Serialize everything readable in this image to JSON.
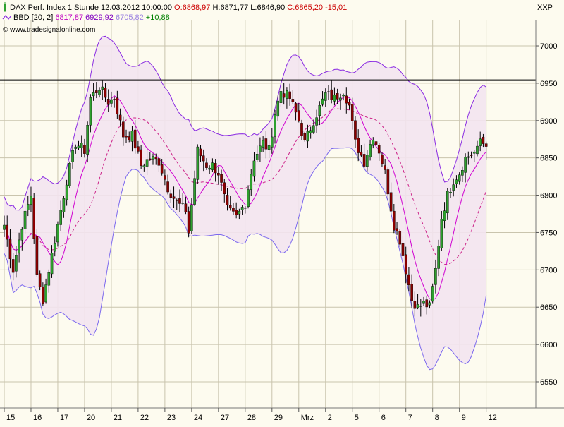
{
  "header": {
    "line1": [
      {
        "text": "DAX Perf. Index 1 Stunde",
        "color": "#000000"
      },
      {
        "text": "12.03.2012 10:00:00",
        "color": "#000000"
      },
      {
        "text": "O:6868,97",
        "color": "#cc0000"
      },
      {
        "text": "H:6871,77",
        "color": "#000000"
      },
      {
        "text": "L:6846,90",
        "color": "#000000"
      },
      {
        "text": "C:6865,20",
        "color": "#cc0000"
      },
      {
        "text": "-15,01",
        "color": "#cc0000"
      }
    ],
    "line2": [
      {
        "text": "BBD [20, 2]",
        "color": "#000000"
      },
      {
        "text": "6817,87",
        "color": "#c000c0"
      },
      {
        "text": "6929,92",
        "color": "#8000c0"
      },
      {
        "text": "6705,82",
        "color": "#9a80e0"
      },
      {
        "text": "+10,88",
        "color": "#008000"
      }
    ],
    "source": "© www.tradesignalonline.com",
    "symbol": "XXP"
  },
  "colors": {
    "background": "#fdfbef",
    "grid": "#c9c4ad",
    "up_candle": "#2ea02e",
    "down_candle": "#8b0000",
    "band_fill": "#f3e4f0",
    "upper_band": "#8a2be2",
    "lower_band": "#7b68ee",
    "middle_band": "#cc2288",
    "moving_average": "#d000d0",
    "resistance_line": "#000000"
  },
  "chart_data": {
    "type": "candlestick",
    "y_ticks": [
      6550,
      6600,
      6650,
      6700,
      6750,
      6800,
      6850,
      6900,
      6950,
      7000
    ],
    "ylim": [
      6515,
      7035
    ],
    "x_labels": [
      "15",
      "16",
      "17",
      "20",
      "21",
      "22",
      "23",
      "24",
      "27",
      "28",
      "29",
      "Mrz",
      "2",
      "5",
      "6",
      "7",
      "8",
      "9",
      "12"
    ],
    "x_label_index": [
      0,
      9,
      18,
      27,
      36,
      45,
      54,
      63,
      72,
      81,
      90,
      99,
      108,
      117,
      126,
      135,
      144,
      153,
      162
    ],
    "horizontal_line": 6954,
    "close_anchors": [
      [
        0,
        6760
      ],
      [
        3,
        6700
      ],
      [
        6,
        6760
      ],
      [
        9,
        6800
      ],
      [
        11,
        6690
      ],
      [
        13,
        6660
      ],
      [
        16,
        6720
      ],
      [
        18,
        6760
      ],
      [
        21,
        6820
      ],
      [
        24,
        6870
      ],
      [
        27,
        6860
      ],
      [
        29,
        6930
      ],
      [
        32,
        6945
      ],
      [
        35,
        6925
      ],
      [
        37,
        6930
      ],
      [
        40,
        6880
      ],
      [
        43,
        6880
      ],
      [
        46,
        6840
      ],
      [
        49,
        6850
      ],
      [
        52,
        6845
      ],
      [
        55,
        6810
      ],
      [
        58,
        6790
      ],
      [
        61,
        6780
      ],
      [
        62,
        6750
      ],
      [
        65,
        6860
      ],
      [
        68,
        6840
      ],
      [
        70,
        6840
      ],
      [
        72,
        6830
      ],
      [
        75,
        6780
      ],
      [
        78,
        6770
      ],
      [
        81,
        6790
      ],
      [
        84,
        6850
      ],
      [
        87,
        6870
      ],
      [
        89,
        6860
      ],
      [
        91,
        6910
      ],
      [
        93,
        6940
      ],
      [
        96,
        6930
      ],
      [
        99,
        6900
      ],
      [
        101,
        6870
      ],
      [
        104,
        6900
      ],
      [
        108,
        6935
      ],
      [
        111,
        6930
      ],
      [
        114,
        6940
      ],
      [
        116,
        6920
      ],
      [
        118,
        6870
      ],
      [
        121,
        6845
      ],
      [
        124,
        6880
      ],
      [
        126,
        6860
      ],
      [
        128,
        6830
      ],
      [
        131,
        6760
      ],
      [
        133,
        6740
      ],
      [
        135,
        6700
      ],
      [
        137,
        6660
      ],
      [
        139,
        6650
      ],
      [
        141,
        6655
      ],
      [
        143,
        6650
      ],
      [
        145,
        6700
      ],
      [
        147,
        6770
      ],
      [
        149,
        6800
      ],
      [
        151,
        6820
      ],
      [
        153,
        6830
      ],
      [
        155,
        6850
      ],
      [
        157,
        6855
      ],
      [
        159,
        6860
      ],
      [
        161,
        6890
      ],
      [
        162,
        6865
      ]
    ],
    "last_candle": {
      "open": 6868.97,
      "high": 6871.77,
      "low": 6846.9,
      "close": 6865.2
    },
    "bollinger": {
      "period": 20,
      "stddev": 2,
      "middle": 6817.87,
      "upper": 6929.92,
      "lower": 6705.82,
      "change": 10.88
    }
  }
}
